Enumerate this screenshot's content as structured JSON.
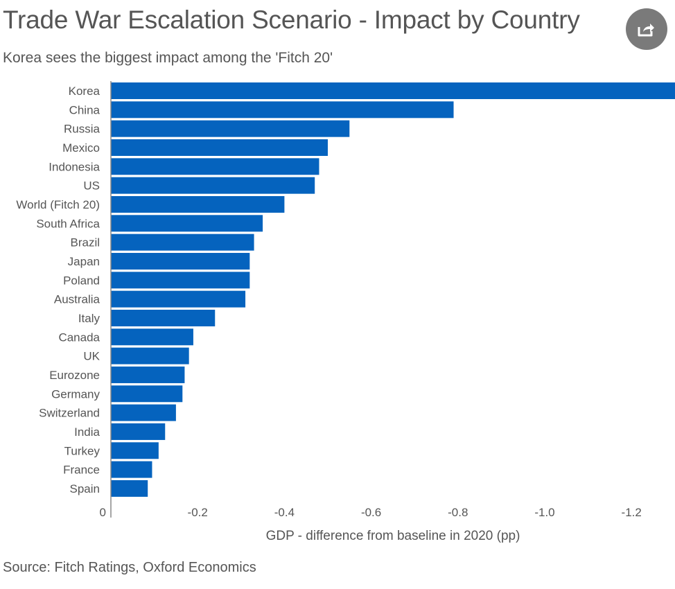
{
  "chart_data": {
    "type": "bar",
    "orientation": "horizontal",
    "title": "Trade War Escalation Scenario - Impact by Country",
    "subtitle": "Korea sees the biggest impact among the 'Fitch 20'",
    "xlabel": "GDP - difference from baseline in 2020 (pp)",
    "source": "Source: Fitch Ratings, Oxford Economics",
    "categories": [
      "Korea",
      "China",
      "Russia",
      "Mexico",
      "Indonesia",
      "US",
      "World (Fitch 20)",
      "South Africa",
      "Brazil",
      "Japan",
      "Poland",
      "Australia",
      "Italy",
      "Canada",
      "UK",
      "Eurozone",
      "Germany",
      "Switzerland",
      "India",
      "Turkey",
      "France",
      "Spain"
    ],
    "values": [
      -1.31,
      -0.79,
      -0.55,
      -0.5,
      -0.48,
      -0.47,
      -0.4,
      -0.35,
      -0.33,
      -0.32,
      -0.32,
      -0.31,
      -0.24,
      -0.19,
      -0.18,
      -0.17,
      -0.165,
      -0.15,
      -0.125,
      -0.11,
      -0.095,
      -0.085
    ],
    "xticks": [
      0,
      -0.2,
      -0.4,
      -0.6,
      -0.8,
      -1.0,
      -1.2
    ],
    "xtick_labels": [
      "0",
      "-0.2",
      "-0.4",
      "-0.6",
      "-0.8",
      "-1.0",
      "-1.2"
    ],
    "xlim": [
      0,
      -1.3
    ],
    "bar_color": "#0563be",
    "grid": false,
    "legend": "none"
  },
  "share_icon": "share-icon"
}
